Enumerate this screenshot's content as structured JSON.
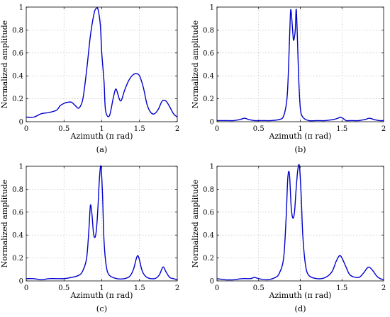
{
  "chart_data": [
    {
      "type": "line",
      "caption": "(a)",
      "xlabel": "Azimuth (π rad)",
      "ylabel": "Normalized amplitude",
      "xlim": [
        0,
        2
      ],
      "ylim": [
        0,
        1
      ],
      "xticks": [
        "0",
        "0.5",
        "1",
        "1.5",
        "2"
      ],
      "yticks": [
        "0",
        "0.2",
        "0.4",
        "0.6",
        "0.8",
        "1"
      ],
      "grid": true,
      "line_color": "#0000cc",
      "x": [
        0,
        0.1,
        0.2,
        0.3,
        0.4,
        0.45,
        0.5,
        0.55,
        0.6,
        0.65,
        0.7,
        0.75,
        0.8,
        0.85,
        0.9,
        0.93,
        0.95,
        0.98,
        1.0,
        1.03,
        1.05,
        1.1,
        1.15,
        1.18,
        1.2,
        1.25,
        1.3,
        1.35,
        1.4,
        1.45,
        1.5,
        1.55,
        1.6,
        1.65,
        1.7,
        1.75,
        1.8,
        1.85,
        1.9,
        1.95,
        2.0
      ],
      "y": [
        0.04,
        0.04,
        0.07,
        0.08,
        0.1,
        0.14,
        0.16,
        0.17,
        0.17,
        0.14,
        0.12,
        0.2,
        0.45,
        0.75,
        0.95,
        0.99,
        0.98,
        0.85,
        0.6,
        0.35,
        0.1,
        0.05,
        0.2,
        0.28,
        0.27,
        0.18,
        0.27,
        0.35,
        0.4,
        0.42,
        0.4,
        0.3,
        0.15,
        0.08,
        0.07,
        0.11,
        0.18,
        0.18,
        0.13,
        0.07,
        0.04
      ]
    },
    {
      "type": "line",
      "caption": "(b)",
      "xlabel": "Azimuth (π rad)",
      "ylabel": "Normalized amplitude",
      "xlim": [
        0,
        2
      ],
      "ylim": [
        0,
        1
      ],
      "xticks": [
        "0",
        "0.5",
        "1",
        "1.5",
        "2"
      ],
      "yticks": [
        "0",
        "0.2",
        "0.4",
        "0.6",
        "0.8",
        "1"
      ],
      "grid": true,
      "line_color": "#0000cc",
      "x": [
        0,
        0.1,
        0.2,
        0.28,
        0.33,
        0.38,
        0.45,
        0.55,
        0.65,
        0.75,
        0.8,
        0.84,
        0.86,
        0.88,
        0.89,
        0.91,
        0.92,
        0.94,
        0.95,
        0.96,
        0.98,
        1.0,
        1.03,
        1.1,
        1.2,
        1.3,
        1.4,
        1.45,
        1.48,
        1.51,
        1.55,
        1.6,
        1.7,
        1.78,
        1.83,
        1.88,
        1.95,
        2.0
      ],
      "y": [
        0.01,
        0.01,
        0.01,
        0.02,
        0.03,
        0.02,
        0.01,
        0.01,
        0.01,
        0.02,
        0.05,
        0.2,
        0.5,
        0.92,
        0.96,
        0.78,
        0.71,
        0.8,
        0.98,
        0.85,
        0.4,
        0.12,
        0.04,
        0.01,
        0.01,
        0.01,
        0.02,
        0.03,
        0.04,
        0.03,
        0.01,
        0.01,
        0.01,
        0.02,
        0.03,
        0.02,
        0.01,
        0.01
      ]
    },
    {
      "type": "line",
      "caption": "(c)",
      "xlabel": "Azimuth (π rad)",
      "ylabel": "Normalized amplitude",
      "xlim": [
        0,
        2
      ],
      "ylim": [
        0,
        1
      ],
      "xticks": [
        "0",
        "0.5",
        "1",
        "1.5",
        "2"
      ],
      "yticks": [
        "0",
        "0.2",
        "0.4",
        "0.6",
        "0.8",
        "1"
      ],
      "grid": true,
      "line_color": "#0000cc",
      "x": [
        0,
        0.1,
        0.2,
        0.3,
        0.4,
        0.5,
        0.6,
        0.7,
        0.75,
        0.8,
        0.83,
        0.85,
        0.87,
        0.89,
        0.91,
        0.93,
        0.95,
        0.97,
        0.99,
        1.01,
        1.03,
        1.06,
        1.1,
        1.2,
        1.3,
        1.37,
        1.42,
        1.46,
        1.48,
        1.5,
        1.54,
        1.6,
        1.7,
        1.76,
        1.8,
        1.82,
        1.85,
        1.9,
        1.95,
        2.0
      ],
      "y": [
        0.02,
        0.02,
        0.01,
        0.02,
        0.02,
        0.02,
        0.03,
        0.05,
        0.09,
        0.2,
        0.45,
        0.66,
        0.58,
        0.42,
        0.38,
        0.45,
        0.65,
        0.9,
        1.0,
        0.75,
        0.35,
        0.13,
        0.05,
        0.02,
        0.02,
        0.04,
        0.1,
        0.2,
        0.22,
        0.18,
        0.08,
        0.03,
        0.02,
        0.05,
        0.11,
        0.12,
        0.08,
        0.03,
        0.02,
        0.01
      ]
    },
    {
      "type": "line",
      "caption": "(d)",
      "xlabel": "Azimuth (π rad)",
      "ylabel": "Normalized amplitude",
      "xlim": [
        0,
        2
      ],
      "ylim": [
        0,
        1
      ],
      "xticks": [
        "0",
        "0.5",
        "1",
        "1.5",
        "2"
      ],
      "yticks": [
        "0",
        "0.2",
        "0.4",
        "0.6",
        "0.8",
        "1"
      ],
      "grid": true,
      "line_color": "#0000cc",
      "x": [
        0,
        0.1,
        0.2,
        0.3,
        0.4,
        0.45,
        0.5,
        0.6,
        0.7,
        0.75,
        0.8,
        0.83,
        0.85,
        0.87,
        0.89,
        0.91,
        0.93,
        0.95,
        0.97,
        0.99,
        1.01,
        1.03,
        1.06,
        1.1,
        1.2,
        1.3,
        1.38,
        1.43,
        1.47,
        1.5,
        1.55,
        1.6,
        1.7,
        1.76,
        1.8,
        1.83,
        1.87,
        1.92,
        1.96,
        2.0
      ],
      "y": [
        0.02,
        0.01,
        0.01,
        0.02,
        0.02,
        0.03,
        0.02,
        0.01,
        0.03,
        0.07,
        0.2,
        0.55,
        0.9,
        0.93,
        0.65,
        0.55,
        0.6,
        0.8,
        0.97,
        1.0,
        0.75,
        0.4,
        0.15,
        0.05,
        0.02,
        0.03,
        0.08,
        0.17,
        0.22,
        0.2,
        0.12,
        0.05,
        0.03,
        0.07,
        0.11,
        0.12,
        0.09,
        0.04,
        0.02,
        0.01
      ]
    }
  ]
}
